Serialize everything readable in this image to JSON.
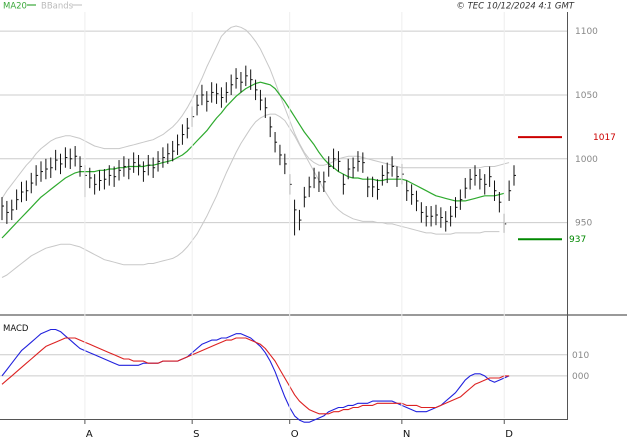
{
  "header": {
    "legend": [
      {
        "label": "MA20",
        "color": "#3aa83a"
      },
      {
        "label": "BBands",
        "color": "#c8c8c8"
      }
    ],
    "copyright": "© TEC 10/12/2024 4:1 GMT"
  },
  "colors": {
    "price": "#111111",
    "ma20": "#2eaa2e",
    "bbands": "#c8c8c8",
    "macd": "#2222dd",
    "signal": "#dd2222",
    "resistance": "#cc0000",
    "support": "#008800",
    "grid": "#cccccc",
    "axisTick": "#555555"
  },
  "chart_data": [
    {
      "type": "line",
      "panel": "price",
      "ylim": [
        880,
        1115
      ],
      "yticks": [
        {
          "value": 950,
          "label": "950"
        },
        {
          "value": 1000,
          "label": "1000"
        },
        {
          "value": 1050,
          "label": "1050"
        },
        {
          "value": 1100,
          "label": "1100"
        }
      ],
      "months": [
        {
          "label": "A",
          "index": 17
        },
        {
          "label": "S",
          "index": 39
        },
        {
          "label": "O",
          "index": 59
        },
        {
          "label": "N",
          "index": 82
        },
        {
          "label": "D",
          "index": 103
        }
      ],
      "close": [
        963,
        958,
        960,
        968,
        974,
        975,
        981,
        987,
        990,
        992,
        993,
        999,
        996,
        1001,
        1000,
        1002,
        994,
        987,
        985,
        980,
        983,
        984,
        987,
        986,
        991,
        994,
        992,
        997,
        995,
        990,
        995,
        993,
        998,
        1001,
        1004,
        1006,
        1011,
        1019,
        1024,
        1033,
        1042,
        1050,
        1045,
        1052,
        1051,
        1048,
        1052,
        1058,
        1063,
        1060,
        1065,
        1062,
        1054,
        1046,
        1040,
        1025,
        1013,
        1003,
        996,
        980,
        960,
        952,
        970,
        978,
        985,
        982,
        982,
        994,
        1000,
        998,
        980,
        992,
        993,
        998,
        997,
        978,
        978,
        976,
        987,
        989,
        994,
        986,
        988,
        975,
        972,
        967,
        958,
        955,
        955,
        956,
        954,
        951,
        955,
        962,
        968,
        977,
        984,
        987,
        984,
        980,
        986,
        975,
        966,
        949,
        975,
        987
      ],
      "ranges": [
        [
          952,
          970
        ],
        [
          949,
          967
        ],
        [
          952,
          968
        ],
        [
          960,
          976
        ],
        [
          966,
          982
        ],
        [
          967,
          983
        ],
        [
          973,
          989
        ],
        [
          979,
          995
        ],
        [
          982,
          998
        ],
        [
          984,
          1000
        ],
        [
          985,
          1001
        ],
        [
          991,
          1007
        ],
        [
          988,
          1004
        ],
        [
          993,
          1009
        ],
        [
          992,
          1008
        ],
        [
          994,
          1010
        ],
        [
          986,
          1002
        ],
        [
          970,
          995
        ],
        [
          977,
          993
        ],
        [
          972,
          988
        ],
        [
          975,
          991
        ],
        [
          976,
          992
        ],
        [
          979,
          995
        ],
        [
          978,
          994
        ],
        [
          983,
          999
        ],
        [
          986,
          1002
        ],
        [
          984,
          1000
        ],
        [
          989,
          1005
        ],
        [
          987,
          1003
        ],
        [
          982,
          998
        ],
        [
          987,
          1003
        ],
        [
          985,
          1001
        ],
        [
          990,
          1006
        ],
        [
          993,
          1009
        ],
        [
          996,
          1012
        ],
        [
          998,
          1014
        ],
        [
          1003,
          1019
        ],
        [
          1011,
          1027
        ],
        [
          1016,
          1032
        ],
        [
          1025,
          1041
        ],
        [
          1034,
          1050
        ],
        [
          1042,
          1058
        ],
        [
          1037,
          1053
        ],
        [
          1044,
          1060
        ],
        [
          1043,
          1059
        ],
        [
          1040,
          1056
        ],
        [
          1044,
          1060
        ],
        [
          1050,
          1066
        ],
        [
          1055,
          1071
        ],
        [
          1052,
          1068
        ],
        [
          1057,
          1073
        ],
        [
          1054,
          1070
        ],
        [
          1046,
          1062
        ],
        [
          1038,
          1054
        ],
        [
          1032,
          1048
        ],
        [
          1017,
          1033
        ],
        [
          1005,
          1021
        ],
        [
          995,
          1011
        ],
        [
          988,
          1004
        ],
        [
          972,
          988
        ],
        [
          940,
          968
        ],
        [
          944,
          960
        ],
        [
          962,
          978
        ],
        [
          970,
          986
        ],
        [
          977,
          993
        ],
        [
          974,
          990
        ],
        [
          974,
          990
        ],
        [
          986,
          1002
        ],
        [
          992,
          1008
        ],
        [
          990,
          1006
        ],
        [
          972,
          988
        ],
        [
          984,
          1000
        ],
        [
          985,
          1001
        ],
        [
          990,
          1006
        ],
        [
          989,
          1005
        ],
        [
          970,
          986
        ],
        [
          970,
          986
        ],
        [
          968,
          984
        ],
        [
          979,
          995
        ],
        [
          981,
          997
        ],
        [
          986,
          1002
        ],
        [
          978,
          994
        ],
        [
          980,
          996
        ],
        [
          967,
          983
        ],
        [
          964,
          980
        ],
        [
          959,
          975
        ],
        [
          950,
          966
        ],
        [
          947,
          963
        ],
        [
          947,
          963
        ],
        [
          948,
          964
        ],
        [
          946,
          962
        ],
        [
          943,
          959
        ],
        [
          947,
          963
        ],
        [
          954,
          970
        ],
        [
          960,
          976
        ],
        [
          969,
          985
        ],
        [
          976,
          992
        ],
        [
          979,
          995
        ],
        [
          976,
          992
        ],
        [
          972,
          988
        ],
        [
          978,
          994
        ],
        [
          967,
          983
        ],
        [
          958,
          974
        ],
        [
          942,
          957
        ],
        [
          967,
          983
        ],
        [
          979,
          995
        ]
      ],
      "series": [
        {
          "name": "MA20",
          "values": [
            938,
            942,
            946,
            950,
            954,
            958,
            962,
            966,
            970,
            973,
            976,
            979,
            982,
            985,
            987,
            989,
            990,
            990,
            990,
            990,
            991,
            991,
            992,
            992,
            993,
            993,
            994,
            994,
            994,
            994,
            995,
            995,
            996,
            997,
            998,
            999,
            1001,
            1003,
            1006,
            1010,
            1014,
            1018,
            1022,
            1027,
            1032,
            1036,
            1041,
            1045,
            1049,
            1052,
            1055,
            1057,
            1059,
            1060,
            1059,
            1058,
            1055,
            1050,
            1045,
            1039,
            1033,
            1027,
            1021,
            1016,
            1011,
            1005,
            1000,
            996,
            993,
            990,
            988,
            986,
            985,
            985,
            984,
            984,
            984,
            983,
            983,
            984,
            984,
            984,
            984,
            983,
            981,
            979,
            977,
            975,
            973,
            971,
            970,
            969,
            968,
            967,
            967,
            967,
            968,
            969,
            970,
            971,
            971,
            971,
            972,
            973
          ]
        },
        {
          "name": "BBands",
          "values": [
            907,
            909,
            912,
            915,
            918,
            921,
            924,
            926,
            928,
            930,
            931,
            932,
            933,
            933,
            933,
            932,
            931,
            929,
            927,
            925,
            923,
            921,
            920,
            919,
            918,
            917,
            917,
            917,
            917,
            917,
            918,
            918,
            919,
            920,
            921,
            922,
            924,
            927,
            931,
            936,
            941,
            948,
            955,
            963,
            971,
            980,
            989,
            997,
            1005,
            1012,
            1018,
            1024,
            1029,
            1032,
            1034,
            1035,
            1035,
            1033,
            1030,
            1024,
            1018,
            1011,
            1004,
            997,
            990,
            983,
            976,
            970,
            964,
            960,
            957,
            955,
            953,
            952,
            951,
            951,
            951,
            950,
            950,
            949,
            949,
            948,
            947,
            946,
            945,
            944,
            943,
            942,
            942,
            941,
            941,
            941,
            941,
            942,
            942,
            942,
            942,
            942,
            942,
            943,
            943,
            943,
            943
          ]
        },
        {
          "name": "BBands upper",
          "values": [
            969,
            975,
            980,
            985,
            990,
            995,
            999,
            1004,
            1008,
            1011,
            1014,
            1016,
            1017,
            1018,
            1018,
            1017,
            1016,
            1014,
            1012,
            1010,
            1009,
            1008,
            1008,
            1008,
            1008,
            1009,
            1010,
            1011,
            1012,
            1013,
            1014,
            1015,
            1017,
            1019,
            1022,
            1025,
            1029,
            1034,
            1040,
            1047,
            1055,
            1063,
            1072,
            1080,
            1088,
            1096,
            1100,
            1103,
            1104,
            1103,
            1101,
            1097,
            1092,
            1086,
            1078,
            1070,
            1060,
            1050,
            1040,
            1030,
            1020,
            1012,
            1005,
            1000,
            997,
            995,
            995,
            996,
            998,
            1000,
            1001,
            1002,
            1002,
            1002,
            1001,
            1000,
            999,
            998,
            997,
            996,
            995,
            994,
            993,
            993,
            993,
            993,
            993,
            993,
            993,
            993,
            993,
            993,
            993,
            993,
            993,
            993,
            993,
            993,
            993,
            994,
            994,
            994,
            995,
            996,
            997
          ]
        }
      ],
      "levels": [
        {
          "name": "resistance",
          "value": 1017,
          "label": "1017"
        },
        {
          "name": "support",
          "value": 937,
          "label": "937"
        }
      ]
    },
    {
      "type": "line",
      "panel": "MACD",
      "title": "MACD",
      "ylim": [
        -20,
        27
      ],
      "yticks": [
        {
          "value": 10,
          "label": "010"
        },
        {
          "value": 0,
          "label": "000"
        }
      ],
      "series": [
        {
          "name": "MACD",
          "values": [
            0,
            3,
            6,
            9,
            12,
            14,
            16,
            18,
            20,
            21,
            22,
            22,
            21,
            19,
            17,
            15,
            13,
            12,
            11,
            10,
            9,
            8,
            7,
            6,
            5,
            5,
            5,
            5,
            5,
            6,
            6,
            6,
            6,
            7,
            7,
            7,
            7,
            8,
            9,
            11,
            13,
            15,
            16,
            17,
            17,
            18,
            18,
            19,
            20,
            20,
            19,
            18,
            16,
            14,
            11,
            7,
            2,
            -4,
            -10,
            -15,
            -19,
            -21,
            -22,
            -22,
            -21,
            -20,
            -19,
            -17,
            -16,
            -15,
            -15,
            -14,
            -14,
            -13,
            -13,
            -13,
            -12,
            -12,
            -12,
            -12,
            -12,
            -13,
            -14,
            -15,
            -16,
            -17,
            -17,
            -17,
            -16,
            -15,
            -14,
            -12,
            -10,
            -8,
            -5,
            -2,
            0,
            1,
            1,
            0,
            -2,
            -3,
            -2,
            -1,
            0
          ]
        },
        {
          "name": "Signal",
          "values": [
            -4,
            -2,
            0,
            2,
            4,
            6,
            8,
            10,
            12,
            14,
            15,
            16,
            17,
            18,
            18,
            18,
            17,
            16,
            15,
            14,
            13,
            12,
            11,
            10,
            9,
            8,
            8,
            7,
            7,
            7,
            6,
            6,
            6,
            7,
            7,
            7,
            7,
            8,
            9,
            10,
            11,
            12,
            13,
            14,
            15,
            16,
            17,
            17,
            18,
            18,
            18,
            17,
            16,
            15,
            13,
            10,
            7,
            3,
            -1,
            -5,
            -9,
            -12,
            -14,
            -16,
            -17,
            -18,
            -18,
            -18,
            -17,
            -17,
            -16,
            -16,
            -15,
            -15,
            -14,
            -14,
            -14,
            -13,
            -13,
            -13,
            -13,
            -13,
            -13,
            -14,
            -14,
            -14,
            -15,
            -15,
            -15,
            -15,
            -14,
            -13,
            -12,
            -11,
            -10,
            -8,
            -6,
            -4,
            -3,
            -2,
            -1,
            -1,
            -1,
            0,
            0
          ]
        }
      ]
    }
  ]
}
